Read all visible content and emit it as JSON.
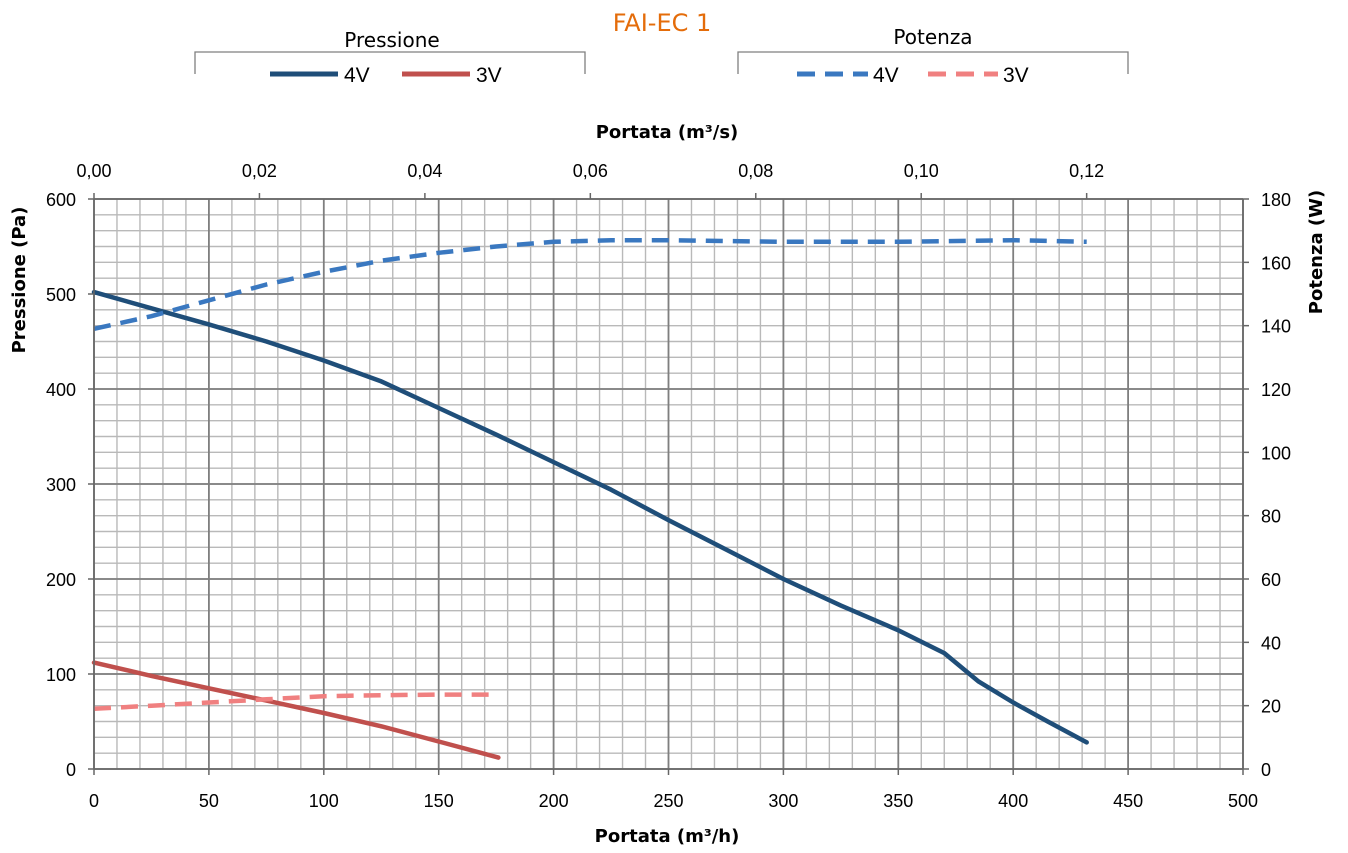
{
  "chart_data": {
    "type": "line",
    "title": "FAI-EC 1",
    "legend_groups": [
      {
        "title": "Pressione",
        "entries": [
          {
            "name": "4V",
            "color": "#1f4e79",
            "dashed": false
          },
          {
            "name": "3V",
            "color": "#c0504d",
            "dashed": false
          }
        ]
      },
      {
        "title": "Potenza",
        "entries": [
          {
            "name": "4V",
            "color": "#3a78c0",
            "dashed": true
          },
          {
            "name": "3V",
            "color": "#f08080",
            "dashed": true
          }
        ]
      }
    ],
    "xlabel_bottom": "Portata (m³/h)",
    "xlabel_top": "Portata (m³/s)",
    "ylabel_left": "Pressione (Pa)",
    "ylabel_right": "Potenza (W)",
    "xlim": [
      0,
      500
    ],
    "xlim_top": [
      0,
      0.1389
    ],
    "ylim_left": [
      0,
      600
    ],
    "ylim_right": [
      0,
      180
    ],
    "x_ticks": [
      "0",
      "50",
      "100",
      "150",
      "200",
      "250",
      "300",
      "350",
      "400",
      "450",
      "500"
    ],
    "x_tick_values": [
      0,
      50,
      100,
      150,
      200,
      250,
      300,
      350,
      400,
      450,
      500
    ],
    "x_top_ticks": [
      "0,00",
      "0,02",
      "0,04",
      "0,06",
      "0,08",
      "0,10",
      "0,12"
    ],
    "x_top_tick_values": [
      0,
      0.02,
      0.04,
      0.06,
      0.08,
      0.1,
      0.12
    ],
    "y_left_ticks": [
      "0",
      "100",
      "200",
      "300",
      "400",
      "500",
      "600"
    ],
    "y_left_tick_values": [
      0,
      100,
      200,
      300,
      400,
      500,
      600
    ],
    "y_right_ticks": [
      "0",
      "20",
      "40",
      "60",
      "80",
      "100",
      "120",
      "140",
      "160",
      "180"
    ],
    "y_right_tick_values": [
      0,
      20,
      40,
      60,
      80,
      100,
      120,
      140,
      160,
      180
    ],
    "grid": true,
    "legend_position": "top",
    "series": [
      {
        "name": "Pressione 4V",
        "axis": "left",
        "color": "#1f4e79",
        "dashed": false,
        "x": [
          0,
          25,
          50,
          75,
          100,
          125,
          150,
          175,
          200,
          225,
          250,
          275,
          300,
          325,
          350,
          370,
          385,
          400,
          415,
          432
        ],
        "y": [
          502,
          485,
          468,
          450,
          430,
          408,
          380,
          352,
          323,
          294,
          262,
          231,
          200,
          172,
          146,
          122,
          92,
          70,
          50,
          28
        ]
      },
      {
        "name": "Pressione 3V",
        "axis": "left",
        "color": "#c0504d",
        "dashed": false,
        "x": [
          0,
          25,
          50,
          75,
          100,
          125,
          150,
          176
        ],
        "y": [
          112,
          98,
          85,
          72,
          59,
          45,
          29,
          12
        ]
      },
      {
        "name": "Potenza 4V",
        "axis": "right",
        "color": "#3a78c0",
        "dashed": true,
        "x": [
          0,
          25,
          50,
          75,
          100,
          125,
          150,
          175,
          200,
          225,
          250,
          300,
          350,
          400,
          432
        ],
        "y": [
          139,
          143,
          148,
          153,
          157,
          160.5,
          163,
          165,
          166.5,
          167,
          167,
          166.5,
          166.5,
          167,
          166.5
        ]
      },
      {
        "name": "Potenza 3V",
        "axis": "right",
        "color": "#f08080",
        "dashed": true,
        "x": [
          0,
          25,
          50,
          75,
          100,
          125,
          150,
          176
        ],
        "y": [
          19,
          20,
          21,
          22,
          23,
          23.3,
          23.5,
          23.5
        ]
      }
    ]
  }
}
